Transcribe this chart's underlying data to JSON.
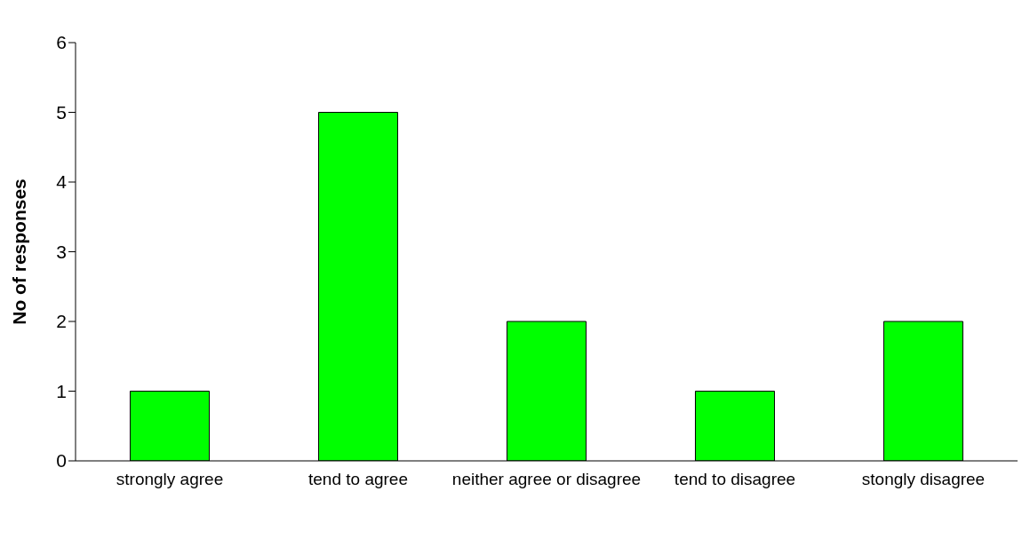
{
  "chart_data": {
    "type": "bar",
    "ylabel": "No of responses",
    "categories": [
      "strongly agree",
      "tend to agree",
      "neither agree or disagree",
      "tend to disagree",
      "stongly disagree"
    ],
    "values": [
      1,
      5,
      2,
      1,
      2
    ],
    "color": "#00ff00",
    "ylim": [
      0,
      6
    ],
    "yticks": [
      0,
      1,
      2,
      3,
      4,
      5,
      6
    ],
    "grid": false,
    "legend": false
  }
}
